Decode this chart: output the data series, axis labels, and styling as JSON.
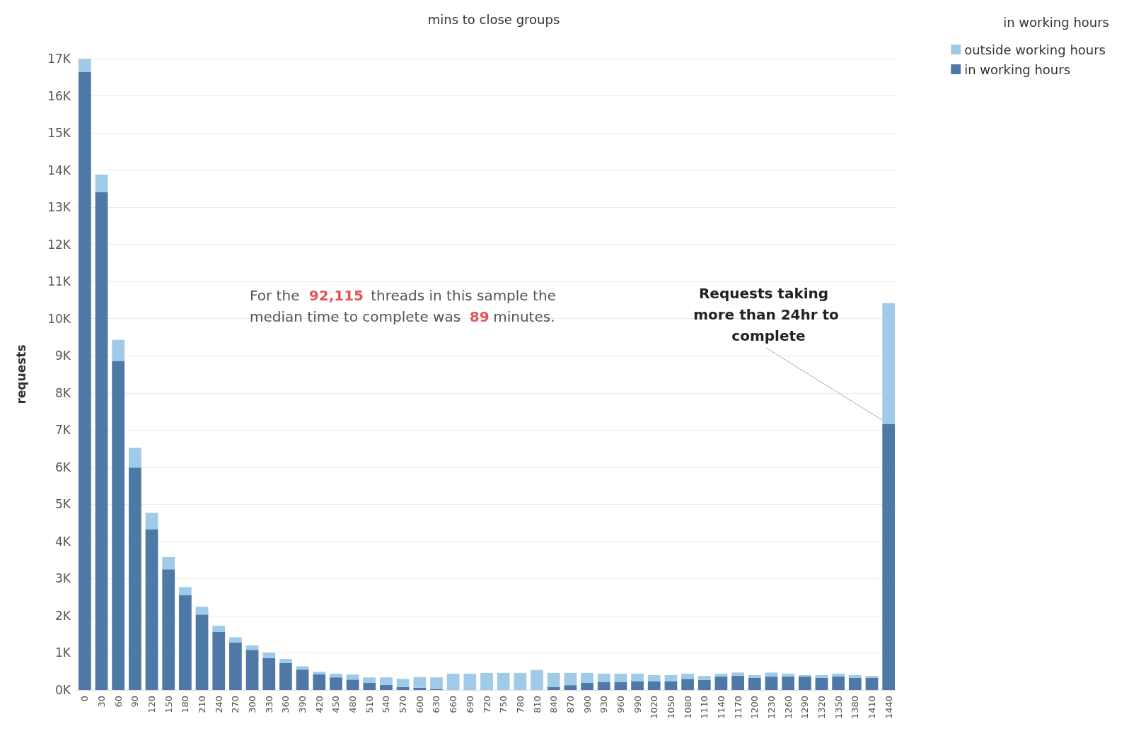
{
  "chart_data": {
    "type": "bar",
    "stacked": true,
    "title": "mins to close groups",
    "ylabel": "requests",
    "legend_title": "in working hours",
    "legend": "top right",
    "grid": "y",
    "categories": [
      "0",
      "30",
      "60",
      "90",
      "120",
      "150",
      "180",
      "210",
      "240",
      "270",
      "300",
      "330",
      "360",
      "390",
      "420",
      "450",
      "480",
      "510",
      "540",
      "570",
      "600",
      "630",
      "660",
      "690",
      "720",
      "750",
      "780",
      "810",
      "840",
      "870",
      "900",
      "930",
      "960",
      "990",
      "1020",
      "1050",
      "1080",
      "1110",
      "1140",
      "1170",
      "1200",
      "1230",
      "1260",
      "1290",
      "1320",
      "1350",
      "1380",
      "1410",
      "1440"
    ],
    "ylim": [
      0,
      17000
    ],
    "yticks": [
      {
        "value": 0,
        "label": "0K"
      },
      {
        "value": 1000,
        "label": "1K"
      },
      {
        "value": 2000,
        "label": "2K"
      },
      {
        "value": 3000,
        "label": "3K"
      },
      {
        "value": 4000,
        "label": "4K"
      },
      {
        "value": 5000,
        "label": "5K"
      },
      {
        "value": 6000,
        "label": "6K"
      },
      {
        "value": 7000,
        "label": "7K"
      },
      {
        "value": 8000,
        "label": "8K"
      },
      {
        "value": 9000,
        "label": "9K"
      },
      {
        "value": 10000,
        "label": "10K"
      },
      {
        "value": 11000,
        "label": "11K"
      },
      {
        "value": 12000,
        "label": "12K"
      },
      {
        "value": 13000,
        "label": "13K"
      },
      {
        "value": 14000,
        "label": "14K"
      },
      {
        "value": 15000,
        "label": "15K"
      },
      {
        "value": 16000,
        "label": "16K"
      },
      {
        "value": 17000,
        "label": "17K"
      }
    ],
    "series": [
      {
        "name": "in working hours",
        "color": "#4e79a7",
        "values": [
          16650,
          13400,
          8860,
          5990,
          4330,
          3250,
          2550,
          2030,
          1560,
          1280,
          1080,
          860,
          730,
          550,
          420,
          340,
          280,
          190,
          140,
          80,
          60,
          30,
          0,
          0,
          0,
          0,
          0,
          0,
          80,
          130,
          190,
          220,
          220,
          240,
          240,
          240,
          300,
          270,
          360,
          380,
          330,
          360,
          360,
          360,
          330,
          360,
          330,
          330,
          7160
        ]
      },
      {
        "name": "outside working hours",
        "color": "#a0cbe8",
        "values": [
          350,
          480,
          570,
          530,
          440,
          330,
          220,
          210,
          170,
          140,
          120,
          150,
          110,
          90,
          70,
          100,
          140,
          150,
          200,
          220,
          290,
          310,
          440,
          440,
          460,
          460,
          460,
          540,
          380,
          330,
          270,
          220,
          220,
          200,
          160,
          160,
          140,
          110,
          80,
          90,
          70,
          110,
          80,
          40,
          70,
          80,
          70,
          50,
          3260
        ]
      }
    ],
    "annotations": [
      "For the  92,115 threads in this sample the median time to complete was  89 minutes.",
      {
        "text": "Requests taking more than 24hr to complete",
        "x": "1440",
        "y": 7160
      }
    ]
  }
}
